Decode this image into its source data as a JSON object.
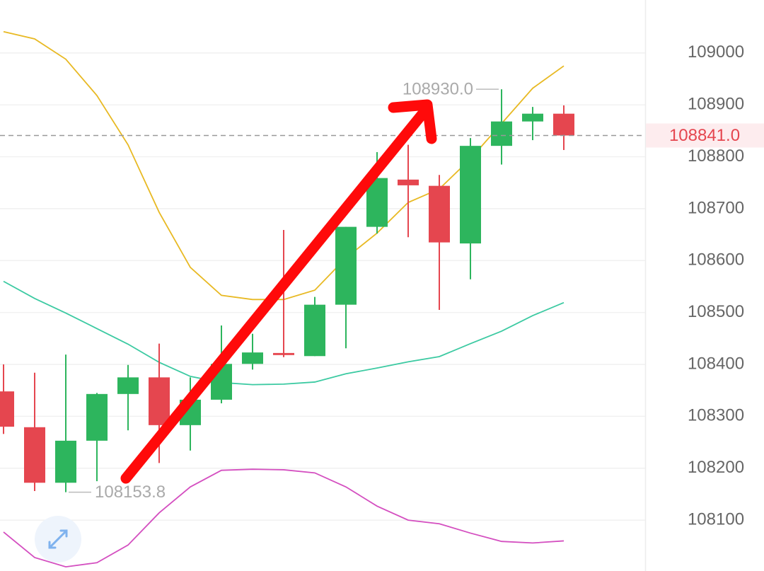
{
  "chart_data": {
    "type": "candlestick",
    "categories": [
      null,
      null,
      null,
      null,
      null,
      null,
      null,
      null,
      null,
      null,
      null,
      null,
      null,
      null,
      null,
      null,
      null,
      null,
      null
    ],
    "open": [
      108348,
      108279,
      108172,
      108253,
      108343,
      108375,
      108283,
      108332,
      108401,
      108422,
      108416,
      108515,
      108665,
      108756,
      108744,
      108633,
      108821,
      108868,
      108883
    ],
    "high": [
      108400,
      108384,
      108419,
      108345,
      108399,
      108440,
      108375,
      108475,
      108459,
      108659,
      108530,
      108665,
      108809,
      108823,
      108765,
      108836,
      108930,
      108896,
      108899
    ],
    "low": [
      108266,
      108156,
      108153.8,
      108175,
      108273,
      108210,
      108234,
      108325,
      108390,
      108414,
      108416,
      108431,
      108652,
      108645,
      108505,
      108564,
      108785,
      108832,
      108813
    ],
    "close": [
      108280,
      108172,
      108253,
      108343,
      108375,
      108283,
      108332,
      108401,
      108423,
      108418,
      108515,
      108665,
      108759,
      108745,
      108635,
      108821,
      108868,
      108883,
      108841
    ],
    "up_color": "#2db55d",
    "down_color": "#e5464f",
    "lines": [
      {
        "color": "#e8b923",
        "values": [
          109041,
          109027,
          108988,
          108918,
          108823,
          108693,
          108587,
          108533,
          108525,
          108525,
          108543,
          108605,
          108653,
          108712,
          108738,
          108796,
          108864,
          108932,
          108975
        ]
      },
      {
        "color": "#3ccaa2",
        "values": [
          108560,
          108527,
          108499,
          108469,
          108439,
          108404,
          108377,
          108365,
          108361,
          108362,
          108366,
          108382,
          108393,
          108405,
          108415,
          108440,
          108464,
          108494,
          108519
        ]
      },
      {
        "color": "#d44fc0",
        "values": [
          108077,
          108028,
          108010,
          108018,
          108052,
          108114,
          108164,
          108196,
          108198,
          108197,
          108191,
          108164,
          108127,
          108100,
          108093,
          108075,
          108059,
          108056,
          108060
        ]
      }
    ],
    "ylim": [
      108002,
      109102
    ],
    "yticks": [
      108100,
      108200,
      108300,
      108400,
      108500,
      108600,
      108700,
      108800,
      108900,
      109000
    ],
    "grid": true,
    "max_label": {
      "value": 108930,
      "label": "108930.0"
    },
    "min_label": 108153.8,
    "last_price": {
      "value": 108841,
      "label": "108841.0"
    }
  }
}
